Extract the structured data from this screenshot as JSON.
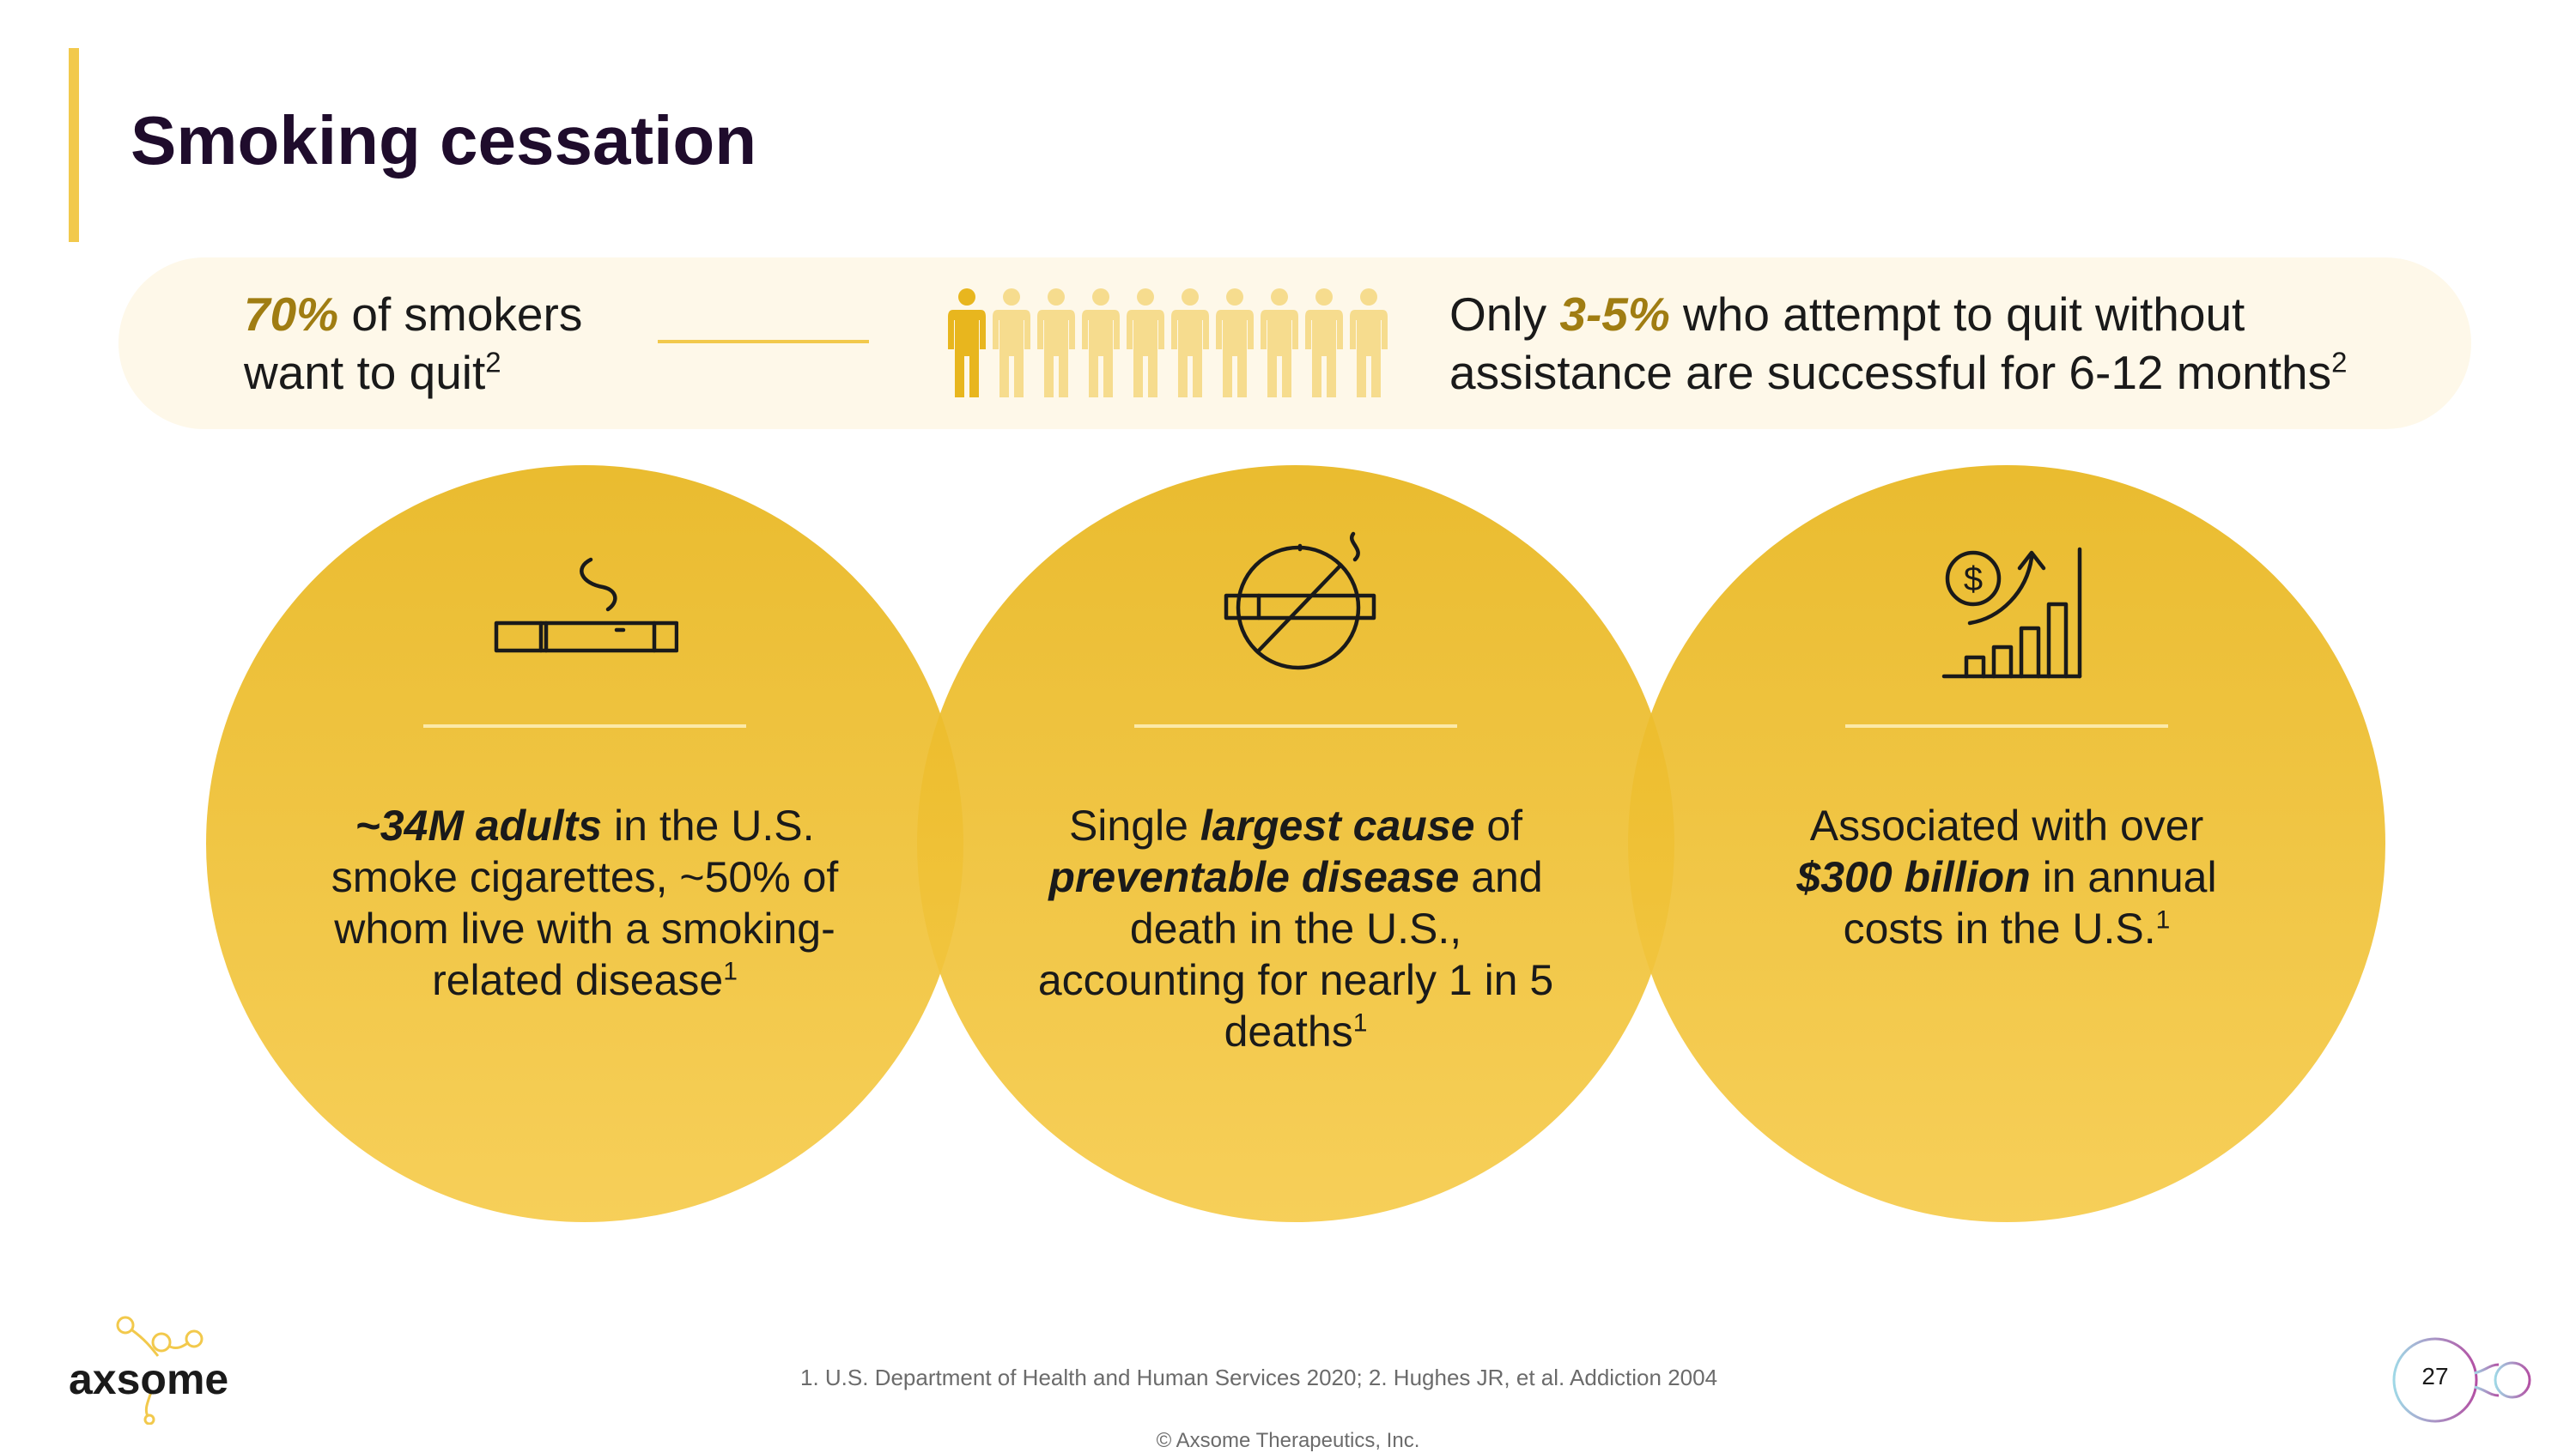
{
  "title": "Smoking cessation",
  "banner": {
    "left_pct": "70%",
    "left_text_1": " of smokers",
    "left_text_2": "want to quit",
    "left_sup": "2",
    "people_total": 10,
    "people_highlight": 1,
    "right_prefix": "Only ",
    "right_pct": "3-5%",
    "right_text_1": " who attempt to quit without",
    "right_text_2": "assistance are successful for 6-12 months",
    "right_sup": "2"
  },
  "circles": [
    {
      "icon": "cigarette-icon",
      "emphasis": "~34M adults",
      "line_1_rest": " in the U.S.",
      "line_2": "smoke cigarettes, ~50% of",
      "line_3": "whom live with a smoking-",
      "line_4": "related disease",
      "sup": "1"
    },
    {
      "icon": "no-smoking-icon",
      "line_1_pre": "Single ",
      "emphasis_1": "largest cause",
      "line_1_post": " of",
      "emphasis_2": "preventable disease",
      "line_2_post": " and",
      "line_3": "death in the U.S.,",
      "line_4": "accounting for nearly 1 in 5",
      "line_5": "deaths",
      "sup": "1"
    },
    {
      "icon": "rising-cost-icon",
      "line_1": "Associated with over",
      "emphasis": "$300 billion",
      "line_2_post": " in annual",
      "line_3": "costs in the U.S.",
      "sup": "1"
    }
  ],
  "footer": {
    "logo_text": "axsome",
    "references": "1. U.S. Department of Health and Human Services 2020; 2. Hughes JR, et al. Addiction 2004",
    "copyright": "© Axsome Therapeutics, Inc.",
    "page_number": "27"
  },
  "colors": {
    "accent": "#f2c94c",
    "gold_text": "#a07d12",
    "title": "#1f0c2c",
    "banner_bg": "#fef8e9",
    "circle": "#eebd2e"
  }
}
